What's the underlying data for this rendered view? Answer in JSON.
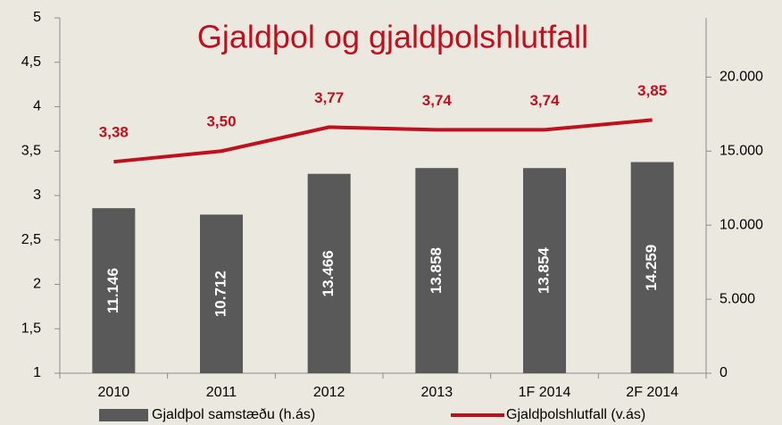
{
  "chart_data": {
    "type": "bar-line",
    "title": "Gjaldþol og gjaldþolshlutfall",
    "categories": [
      "2010",
      "2011",
      "2012",
      "2013",
      "1F 2014",
      "2F 2014"
    ],
    "series": [
      {
        "name": "Gjaldþol samstæðu (h.ás)",
        "type": "bar",
        "axis": "y2",
        "color": "#595959",
        "values": [
          11146,
          10712,
          13466,
          13858,
          13854,
          14259
        ],
        "value_labels": [
          "11.146",
          "10.712",
          "13.466",
          "13.858",
          "13.854",
          "14.259"
        ]
      },
      {
        "name": "Gjaldþolshlutfall (v.ás)",
        "type": "line",
        "axis": "y",
        "color": "#c0101e",
        "values": [
          3.38,
          3.5,
          3.77,
          3.74,
          3.74,
          3.85
        ],
        "value_labels": [
          "3,38",
          "3,50",
          "3,77",
          "3,74",
          "3,74",
          "3,85"
        ]
      }
    ],
    "ylim": [
      1,
      5
    ],
    "yticks": [
      1,
      {
        "value": 1.5,
        "label": "1,5"
      },
      2,
      {
        "value": 2.5,
        "label": "2,5"
      },
      3,
      {
        "value": 3.5,
        "label": "3,5"
      },
      4,
      {
        "value": 4.5,
        "label": "4,5"
      },
      5
    ],
    "y2lim": [
      0,
      24000
    ],
    "y2ticks": [
      0,
      {
        "value": 5000,
        "label": "5.000"
      },
      {
        "value": 10000,
        "label": "10.000"
      },
      {
        "value": 15000,
        "label": "15.000"
      },
      {
        "value": 20000,
        "label": "20.000"
      }
    ],
    "legend": "bottom"
  }
}
